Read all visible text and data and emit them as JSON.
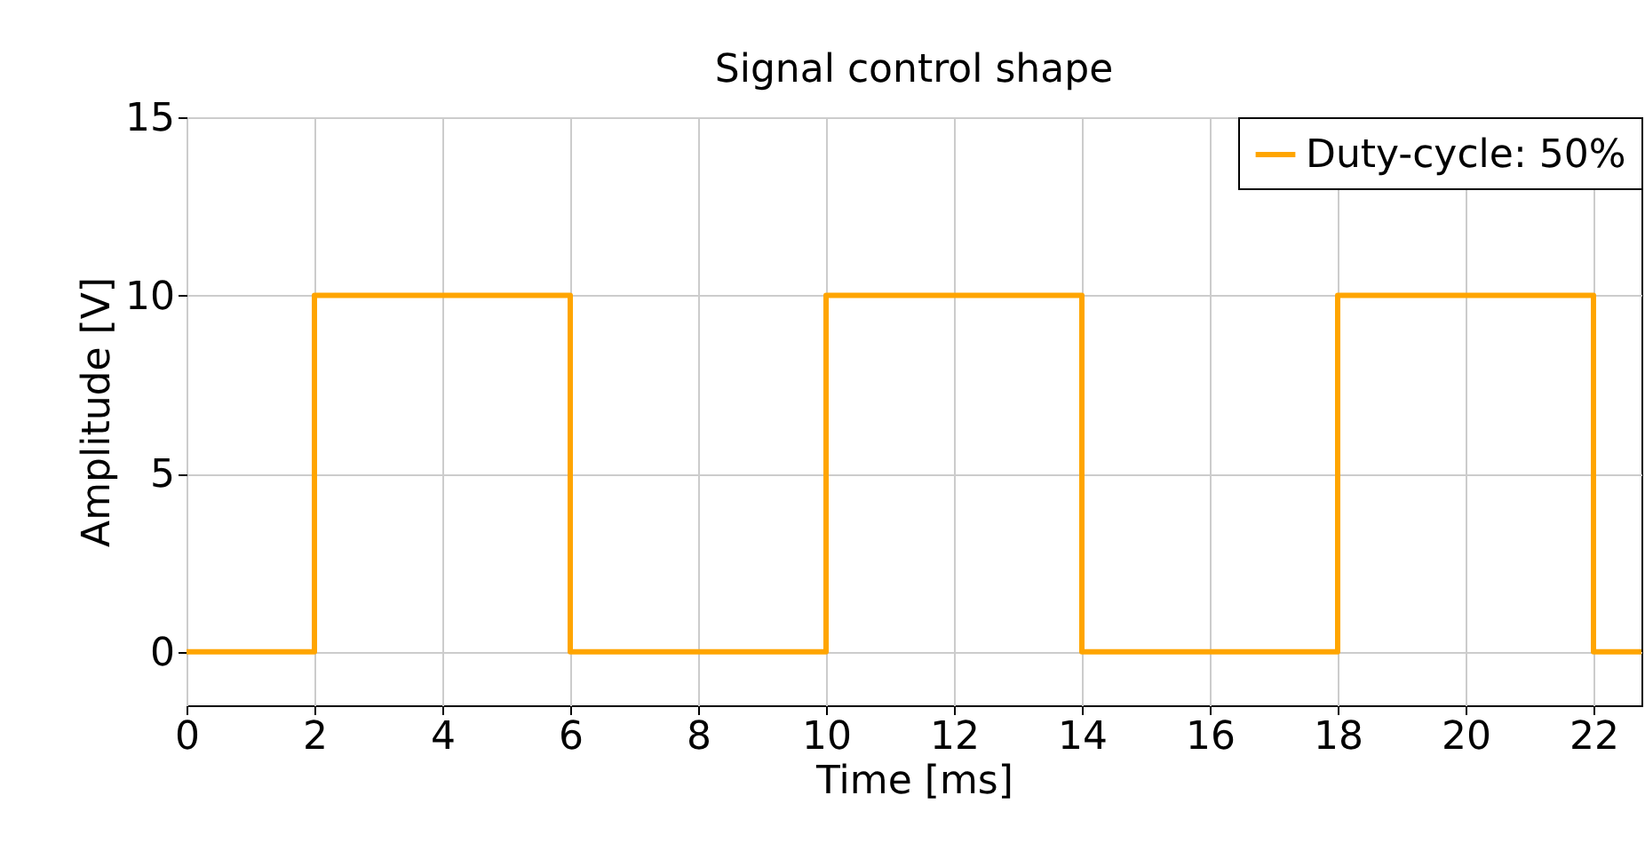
{
  "chart_data": {
    "type": "step",
    "title": "Signal control shape",
    "xlabel": "Time [ms]",
    "ylabel": "Amplitude [V]",
    "series": [
      {
        "name": "Duty-cycle: 50%",
        "color": "#ffa500",
        "x": [
          0,
          2,
          6,
          10,
          14,
          18,
          22,
          22.75
        ],
        "values": [
          0,
          10,
          0,
          10,
          0,
          10,
          0,
          0
        ]
      }
    ],
    "xlim": [
      0,
      22.75
    ],
    "xticks": [
      0,
      2,
      4,
      6,
      8,
      10,
      12,
      14,
      16,
      18,
      20,
      22
    ],
    "ylim": [
      -1.5,
      15
    ],
    "yticks": [
      0,
      5,
      10,
      15
    ],
    "grid": true,
    "legend": "top right",
    "marker": "none",
    "line_style": "solid"
  }
}
